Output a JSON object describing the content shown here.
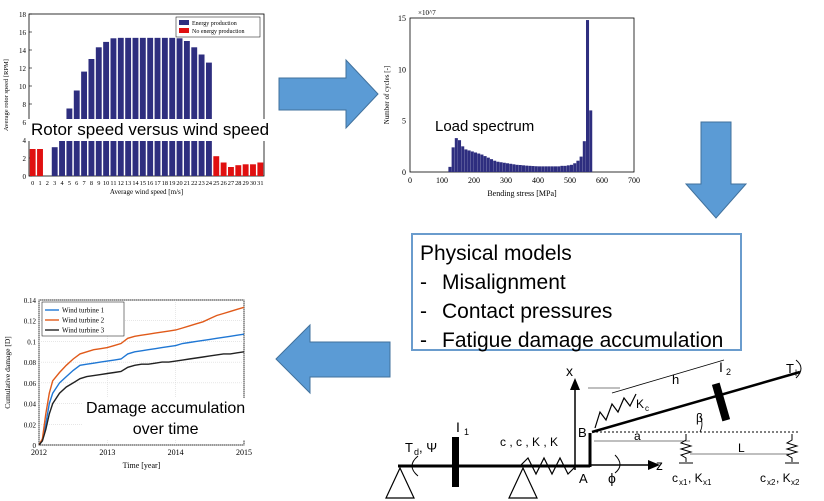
{
  "colors": {
    "arrow": "#5b9bd5",
    "arrow_edge": "#41719c",
    "box_border": "#6a9ccd",
    "bar_navy": "#2e2e7f",
    "bar_red": "#e01010",
    "hist": "#2e2e7f"
  },
  "captions": {
    "rotor": "Rotor speed versus wind speed",
    "load": "Load spectrum",
    "damage": "Damage accumulation\nover time"
  },
  "physical_models": {
    "title": "Physical models",
    "items": [
      "Misalignment",
      "Contact pressures",
      "Fatigue damage accumulation"
    ]
  },
  "schematic": {
    "labels": {
      "x_axis": "x",
      "z_axis": "z",
      "point_a": "A",
      "point_b": "B",
      "phi": "ϕ",
      "h": "h",
      "a": "a",
      "L": "L",
      "beta": "β",
      "kc": "K",
      "kc_sub": "c",
      "i1": "I",
      "i1_sub": "1",
      "i2": "I",
      "i2_sub": "2",
      "tl": "T",
      "tl_sub": "l",
      "td": "T",
      "td_sub": "d",
      "psi": ", Ψ",
      "springs": "c",
      "cx1": "c",
      "cx1_sub": "x1",
      "kx1": ", K",
      "kx1_sub": "x1",
      "cx2": "c",
      "cx2_sub": "x2",
      "kx2": ", K",
      "kx2_sub": "x2",
      "coupling": "c  , c  , K  , K"
    }
  },
  "chart_data": [
    {
      "type": "bar",
      "legend": [
        "Energy production",
        "No energy production"
      ],
      "legend_position": "top-right",
      "xlabel": "Average wind speed [m/s]",
      "ylabel": "Average rotor speed [RPM]",
      "categories": [
        "0",
        "1",
        "2",
        "3",
        "4",
        "5",
        "6",
        "7",
        "8",
        "9",
        "10",
        "11",
        "12",
        "13",
        "14",
        "15",
        "16",
        "17",
        "18",
        "19",
        "20",
        "21",
        "22",
        "23",
        "24",
        "25",
        "26",
        "27",
        "28",
        "29",
        "30",
        "31"
      ],
      "series": [
        {
          "name": "Energy production",
          "values": [
            null,
            null,
            null,
            3.2,
            5.3,
            7.5,
            9.5,
            11.6,
            13.0,
            14.3,
            14.9,
            15.3,
            15.35,
            15.35,
            15.35,
            15.35,
            15.35,
            15.35,
            15.35,
            15.35,
            15.3,
            15.0,
            14.3,
            13.5,
            12.6,
            null,
            null,
            null,
            null,
            null,
            null,
            null
          ]
        },
        {
          "name": "No energy production",
          "values": [
            3.0,
            3.0,
            null,
            null,
            null,
            null,
            null,
            null,
            null,
            null,
            null,
            null,
            null,
            null,
            null,
            null,
            null,
            null,
            null,
            null,
            null,
            null,
            null,
            null,
            null,
            2.2,
            1.5,
            1.0,
            1.2,
            1.3,
            1.3,
            1.5
          ]
        }
      ],
      "ylim": [
        0,
        18
      ],
      "yticks": [
        "0",
        "2",
        "4",
        "6",
        "8",
        "10",
        "12",
        "14",
        "16",
        "18"
      ]
    },
    {
      "type": "bar",
      "xlabel": "Bending stress [MPa]",
      "ylabel": "Number of cycles [-]",
      "y_multiplier": "×10^7",
      "x": [
        125,
        135,
        145,
        155,
        165,
        175,
        185,
        195,
        205,
        215,
        225,
        235,
        245,
        255,
        265,
        275,
        285,
        295,
        305,
        315,
        325,
        335,
        345,
        355,
        365,
        375,
        385,
        395,
        405,
        415,
        425,
        435,
        445,
        455,
        465,
        475,
        485,
        495,
        505,
        515,
        525,
        535,
        545,
        555,
        565,
        575
      ],
      "values": [
        0.5,
        2.4,
        3.3,
        3.1,
        2.5,
        2.2,
        2.1,
        2.0,
        1.9,
        1.8,
        1.7,
        1.55,
        1.4,
        1.25,
        1.1,
        1.0,
        0.95,
        0.9,
        0.85,
        0.8,
        0.75,
        0.7,
        0.68,
        0.65,
        0.62,
        0.6,
        0.58,
        0.56,
        0.55,
        0.55,
        0.55,
        0.55,
        0.55,
        0.55,
        0.55,
        0.6,
        0.6,
        0.65,
        0.7,
        0.85,
        1.1,
        1.5,
        3.0,
        14.8,
        6.0,
        0
      ],
      "xlim": [
        0,
        700
      ],
      "xticks": [
        "0",
        "100",
        "200",
        "300",
        "400",
        "500",
        "600",
        "700"
      ],
      "ylim": [
        0,
        15
      ],
      "yticks": [
        "0",
        "5",
        "10",
        "15"
      ]
    },
    {
      "type": "line",
      "xlabel": "Time [year]",
      "ylabel": "Cumulative damage [D]",
      "xlim": [
        2012,
        2015
      ],
      "xticks": [
        "2012",
        "2013",
        "2014",
        "2015"
      ],
      "ylim": [
        0,
        0.14
      ],
      "yticks": [
        "0",
        "0.02",
        "0.04",
        "0.06",
        "0.08",
        "0.1",
        "0.12",
        "0.14"
      ],
      "legend_position": "top-left",
      "series": [
        {
          "name": "Wind turbine 1",
          "color": "#1f77d4",
          "x": [
            2012,
            2012.05,
            2012.1,
            2012.15,
            2012.2,
            2012.3,
            2012.4,
            2012.5,
            2012.6,
            2012.7,
            2012.8,
            2012.9,
            2013,
            2013.1,
            2013.2,
            2013.3,
            2013.4,
            2013.5,
            2013.6,
            2013.7,
            2013.8,
            2013.9,
            2014,
            2014.1,
            2014.2,
            2014.3,
            2014.4,
            2014.5,
            2014.6,
            2014.7,
            2014.8,
            2014.9,
            2015
          ],
          "y": [
            0,
            0.005,
            0.02,
            0.04,
            0.05,
            0.06,
            0.066,
            0.072,
            0.077,
            0.078,
            0.079,
            0.08,
            0.081,
            0.082,
            0.083,
            0.088,
            0.09,
            0.091,
            0.092,
            0.093,
            0.094,
            0.095,
            0.096,
            0.098,
            0.099,
            0.1,
            0.101,
            0.102,
            0.103,
            0.104,
            0.105,
            0.106,
            0.107
          ]
        },
        {
          "name": "Wind turbine 2",
          "color": "#e05a1a",
          "x": [
            2012,
            2012.05,
            2012.1,
            2012.15,
            2012.2,
            2012.3,
            2012.4,
            2012.5,
            2012.6,
            2012.7,
            2012.8,
            2012.9,
            2013,
            2013.1,
            2013.2,
            2013.3,
            2013.4,
            2013.5,
            2013.6,
            2013.7,
            2013.8,
            2013.9,
            2014,
            2014.1,
            2014.2,
            2014.3,
            2014.4,
            2014.5,
            2014.6,
            2014.7,
            2014.8,
            2014.9,
            2015
          ],
          "y": [
            0,
            0.006,
            0.03,
            0.05,
            0.062,
            0.07,
            0.077,
            0.083,
            0.088,
            0.09,
            0.092,
            0.093,
            0.094,
            0.096,
            0.098,
            0.103,
            0.105,
            0.106,
            0.107,
            0.108,
            0.109,
            0.11,
            0.111,
            0.113,
            0.115,
            0.117,
            0.119,
            0.122,
            0.125,
            0.127,
            0.129,
            0.131,
            0.133
          ]
        },
        {
          "name": "Wind turbine 3",
          "color": "#222222",
          "x": [
            2012,
            2012.05,
            2012.1,
            2012.15,
            2012.2,
            2012.3,
            2012.4,
            2012.5,
            2012.6,
            2012.7,
            2012.8,
            2012.9,
            2013,
            2013.1,
            2013.2,
            2013.3,
            2013.4,
            2013.5,
            2013.6,
            2013.7,
            2013.8,
            2013.9,
            2014,
            2014.1,
            2014.2,
            2014.3,
            2014.4,
            2014.5,
            2014.6,
            2014.7,
            2014.8,
            2014.9,
            2015
          ],
          "y": [
            0,
            0.004,
            0.015,
            0.03,
            0.04,
            0.05,
            0.056,
            0.06,
            0.064,
            0.066,
            0.067,
            0.068,
            0.069,
            0.07,
            0.071,
            0.075,
            0.077,
            0.078,
            0.078,
            0.079,
            0.08,
            0.08,
            0.081,
            0.082,
            0.083,
            0.084,
            0.085,
            0.086,
            0.087,
            0.088,
            0.088,
            0.089,
            0.09
          ]
        }
      ]
    }
  ]
}
